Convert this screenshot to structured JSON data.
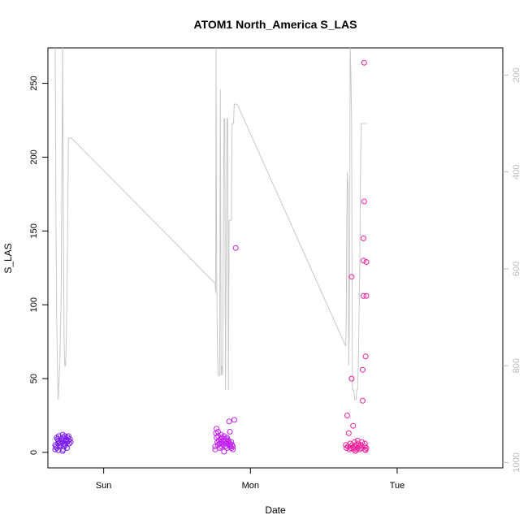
{
  "chart_data": {
    "type": "scatter",
    "title": "ATOM1 North_America S_LAS",
    "xlabel": "Date",
    "ylabel": "S_LAS",
    "x_unit": "days",
    "xlim": [
      -0.38,
      2.72
    ],
    "ylim": [
      -10.5,
      274
    ],
    "x_ticks": [
      {
        "value": 0,
        "label": "Sun"
      },
      {
        "value": 1,
        "label": "Mon"
      },
      {
        "value": 2,
        "label": "Tue"
      }
    ],
    "y_ticks": [
      0,
      50,
      100,
      150,
      200,
      250
    ],
    "y2_ticks": [
      200,
      400,
      600,
      800,
      1000
    ],
    "y2lim": [
      1011,
      144
    ],
    "grid": false,
    "legend": "none",
    "colors": {
      "points_early": "#7b1cf0",
      "points_mid": "#c020f0",
      "points_late": "#f0209a",
      "line": "#c8c8c8",
      "axis": "#000000",
      "right_axis": "#bbbbbb"
    },
    "line_series": {
      "name": "",
      "axis": "right",
      "x": [
        -0.33,
        -0.325,
        -0.32,
        -0.315,
        -0.31,
        -0.3,
        -0.29,
        -0.28,
        -0.275,
        -0.27,
        -0.265,
        -0.26,
        -0.255,
        -0.25,
        -0.24,
        -0.23,
        -0.22,
        -0.22,
        0.76,
        0.763,
        0.766,
        0.77,
        0.775,
        0.78,
        0.79,
        0.795,
        0.8,
        0.805,
        0.81,
        0.82,
        0.825,
        0.83,
        0.84,
        0.845,
        0.85,
        0.855,
        0.86,
        0.865,
        0.87,
        0.875,
        0.88,
        0.885,
        0.89,
        0.895,
        0.9,
        0.905,
        0.91,
        1.65,
        1.653,
        1.657,
        1.66,
        1.665,
        1.67,
        1.675,
        1.68,
        1.685,
        1.69,
        1.695,
        1.7,
        1.705,
        1.71,
        1.715,
        1.72,
        1.725,
        1.73,
        1.735,
        1.74,
        1.745,
        1.75,
        1.755,
        1.76,
        1.77,
        1.78,
        1.785,
        1.79
      ],
      "y": [
        144,
        500,
        700,
        800,
        870,
        800,
        660,
        144,
        500,
        750,
        800,
        800,
        750,
        650,
        330,
        330,
        330,
        330,
        630,
        650,
        144,
        600,
        750,
        820,
        820,
        230,
        820,
        800,
        820,
        290,
        290,
        850,
        290,
        290,
        850,
        500,
        500,
        500,
        500,
        300,
        300,
        300,
        260,
        260,
        260,
        260,
        260,
        760,
        700,
        500,
        400,
        430,
        800,
        700,
        144,
        200,
        300,
        850,
        850,
        850,
        870,
        870,
        870,
        850,
        850,
        800,
        700,
        600,
        400,
        300,
        300,
        300,
        300,
        300,
        300
      ]
    },
    "series": [
      {
        "name": "",
        "color_key": "points_early",
        "points": [
          [
            -0.33,
            5
          ],
          [
            -0.33,
            2
          ],
          [
            -0.325,
            4
          ],
          [
            -0.32,
            3
          ],
          [
            -0.32,
            10
          ],
          [
            -0.315,
            9
          ],
          [
            -0.31,
            6
          ],
          [
            -0.31,
            8
          ],
          [
            -0.305,
            11
          ],
          [
            -0.3,
            7
          ],
          [
            -0.3,
            4
          ],
          [
            -0.295,
            5
          ],
          [
            -0.29,
            9
          ],
          [
            -0.29,
            6
          ],
          [
            -0.285,
            8
          ],
          [
            -0.28,
            7
          ],
          [
            -0.28,
            12
          ],
          [
            -0.275,
            10
          ],
          [
            -0.27,
            6
          ],
          [
            -0.27,
            4
          ],
          [
            -0.265,
            11
          ],
          [
            -0.26,
            8
          ],
          [
            -0.26,
            5
          ],
          [
            -0.255,
            9
          ],
          [
            -0.25,
            7
          ],
          [
            -0.25,
            3
          ],
          [
            -0.245,
            10
          ],
          [
            -0.24,
            8
          ],
          [
            -0.24,
            11
          ],
          [
            -0.235,
            6
          ],
          [
            -0.23,
            9
          ],
          [
            -0.225,
            7
          ],
          [
            -0.28,
            1
          ],
          [
            -0.275,
            2
          ],
          [
            -0.31,
            1.5
          ]
        ]
      },
      {
        "name": "",
        "color_key": "points_mid",
        "points": [
          [
            0.76,
            4
          ],
          [
            0.76,
            2
          ],
          [
            0.765,
            13
          ],
          [
            0.77,
            16
          ],
          [
            0.77,
            10
          ],
          [
            0.775,
            7
          ],
          [
            0.78,
            11
          ],
          [
            0.78,
            5
          ],
          [
            0.785,
            8
          ],
          [
            0.79,
            3
          ],
          [
            0.79,
            6
          ],
          [
            0.795,
            9
          ],
          [
            0.8,
            7
          ],
          [
            0.8,
            4
          ],
          [
            0.805,
            10
          ],
          [
            0.81,
            6
          ],
          [
            0.81,
            8
          ],
          [
            0.815,
            5
          ],
          [
            0.82,
            9
          ],
          [
            0.82,
            0.5
          ],
          [
            0.825,
            7
          ],
          [
            0.83,
            8
          ],
          [
            0.83,
            4
          ],
          [
            0.835,
            6
          ],
          [
            0.84,
            10
          ],
          [
            0.84,
            3
          ],
          [
            0.845,
            7
          ],
          [
            0.85,
            5
          ],
          [
            0.85,
            8
          ],
          [
            0.855,
            21
          ],
          [
            0.86,
            6
          ],
          [
            0.86,
            14
          ],
          [
            0.865,
            4
          ],
          [
            0.87,
            7
          ],
          [
            0.87,
            3
          ],
          [
            0.875,
            5
          ],
          [
            0.88,
            2
          ],
          [
            0.89,
            22
          ],
          [
            0.78,
            14
          ],
          [
            0.8,
            12
          ],
          [
            0.82,
            11
          ],
          [
            0.84,
            9
          ],
          [
            0.86,
            5
          ],
          [
            0.88,
            4
          ],
          [
            0.9,
            138.5
          ]
        ]
      },
      {
        "name": "",
        "color_key": "points_late",
        "points": [
          [
            1.65,
            5
          ],
          [
            1.655,
            3
          ],
          [
            1.66,
            25
          ],
          [
            1.665,
            4
          ],
          [
            1.67,
            13
          ],
          [
            1.675,
            2
          ],
          [
            1.68,
            6
          ],
          [
            1.685,
            3
          ],
          [
            1.69,
            50
          ],
          [
            1.69,
            119
          ],
          [
            1.695,
            5
          ],
          [
            1.7,
            18
          ],
          [
            1.7,
            3
          ],
          [
            1.705,
            2
          ],
          [
            1.71,
            7
          ],
          [
            1.71,
            4
          ],
          [
            1.715,
            1
          ],
          [
            1.72,
            5
          ],
          [
            1.725,
            2
          ],
          [
            1.73,
            8
          ],
          [
            1.73,
            3
          ],
          [
            1.735,
            6
          ],
          [
            1.74,
            4
          ],
          [
            1.745,
            2
          ],
          [
            1.75,
            5
          ],
          [
            1.755,
            3
          ],
          [
            1.76,
            7
          ],
          [
            1.765,
            35
          ],
          [
            1.765,
            56
          ],
          [
            1.77,
            106
          ],
          [
            1.77,
            130
          ],
          [
            1.77,
            145
          ],
          [
            1.775,
            170
          ],
          [
            1.775,
            264
          ],
          [
            1.78,
            2
          ],
          [
            1.78,
            4
          ],
          [
            1.78,
            6
          ],
          [
            1.785,
            1.5
          ],
          [
            1.79,
            3
          ],
          [
            1.79,
            129
          ],
          [
            1.79,
            106
          ],
          [
            1.785,
            65
          ]
        ]
      }
    ]
  }
}
